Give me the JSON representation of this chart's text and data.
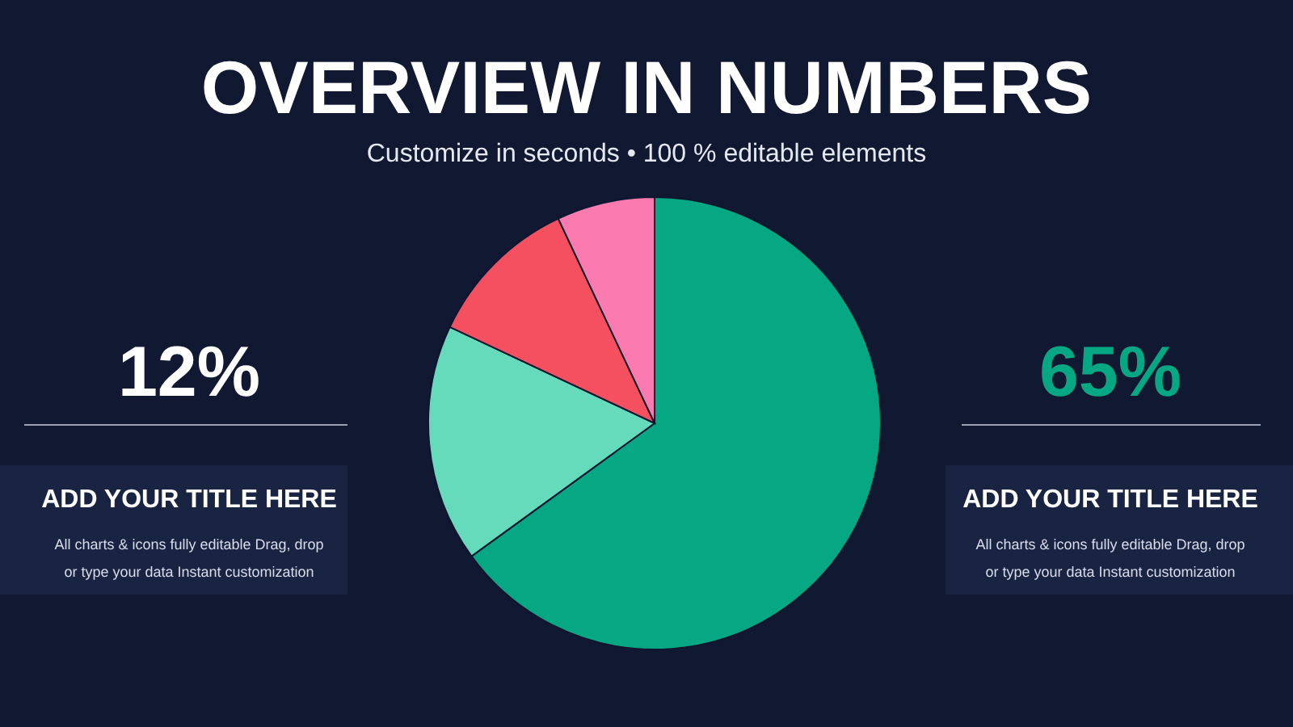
{
  "chart_data": {
    "type": "pie",
    "title": "OVERVIEW IN NUMBERS",
    "subtitle": "Customize in seconds • 100 % editable elements",
    "categories": [
      null,
      null,
      null,
      null
    ],
    "values": [
      65,
      17,
      11,
      7
    ],
    "colors": [
      "#05a882",
      "#66dbbb",
      "#f5505f",
      "#fb7bb0"
    ],
    "annotations": [
      "12%",
      "ADD YOUR TITLE HERE",
      "All charts & icons fully editable Drag, drop or type your data Instant customization",
      "65%",
      "ADD YOUR TITLE HERE",
      "All charts & icons fully editable Drag, drop or type your data Instant customization"
    ]
  }
}
